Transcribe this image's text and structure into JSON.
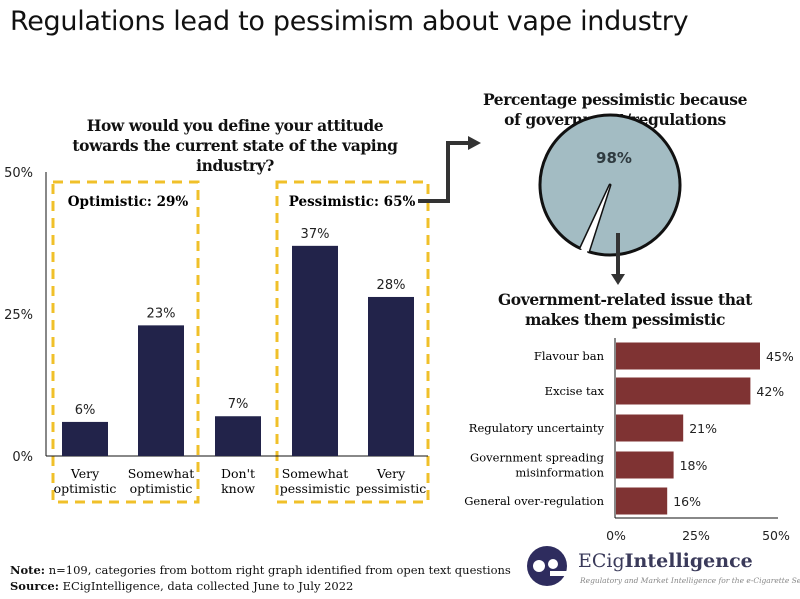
{
  "title": "Regulations lead to pessimism about vape industry",
  "colors": {
    "navy_bar": "#22234a",
    "maroon_bar": "#7f3333",
    "pie_fill": "#a3bcc3",
    "dash_box": "#f0c02a",
    "arrow": "#333333"
  },
  "chart_data": [
    {
      "type": "bar",
      "title": "How would you define your attitude towards the current state of the vaping industry?",
      "categories": [
        "Very optimistic",
        "Somewhat optimistic",
        "Don't know",
        "Somewhat pessimistic",
        "Very pessimistic"
      ],
      "category_lines": [
        [
          "Very",
          "optimistic"
        ],
        [
          "Somewhat",
          "optimistic"
        ],
        [
          "Don't",
          "know"
        ],
        [
          "Somewhat",
          "pessimistic"
        ],
        [
          "Very",
          "pessimistic"
        ]
      ],
      "values": [
        6,
        23,
        7,
        37,
        28
      ],
      "data_labels": [
        "6%",
        "23%",
        "7%",
        "37%",
        "28%"
      ],
      "ylim": [
        0,
        50
      ],
      "yticks": [
        "0%",
        "25%",
        "50%"
      ],
      "grid": false,
      "groups": [
        {
          "label": "Optimistic: 29%",
          "categories": [
            "Very optimistic",
            "Somewhat optimistic"
          ]
        },
        {
          "label": "Pessimistic: 65%",
          "categories": [
            "Somewhat pessimistic",
            "Very pessimistic"
          ]
        }
      ]
    },
    {
      "type": "pie",
      "title": "Percentage pessimistic because of government/regulations",
      "values": [
        98,
        2
      ],
      "data_labels": [
        "98%"
      ]
    },
    {
      "type": "bar",
      "orientation": "horizontal",
      "title": "Government-related issue that makes them pessimistic",
      "categories": [
        "Flavour ban",
        "Excise tax",
        "Regulatory uncertainty",
        "Government spreading misinformation",
        "General over-regulation"
      ],
      "category_lines": [
        [
          "Flavour ban"
        ],
        [
          "Excise tax"
        ],
        [
          "Regulatory uncertainty"
        ],
        [
          "Government spreading",
          "misinformation"
        ],
        [
          "General over-regulation"
        ]
      ],
      "values": [
        45,
        42,
        21,
        18,
        16
      ],
      "data_labels": [
        "45%",
        "42%",
        "21%",
        "18%",
        "16%"
      ],
      "xlim": [
        0,
        50
      ],
      "xticks": [
        "0%",
        "25%",
        "50%"
      ],
      "grid": false
    }
  ],
  "footer": {
    "note_label": "Note:",
    "note_text": "n=109, categories from bottom right graph identified from open text questions",
    "source_label": "Source:",
    "source_text": "ECigIntelligence, data collected June to July 2022"
  },
  "logo": {
    "name_light": "ECig",
    "name_bold": "Intelligence",
    "tagline": "Regulatory and Market Intelligence for the e-Cigarette Sector"
  }
}
